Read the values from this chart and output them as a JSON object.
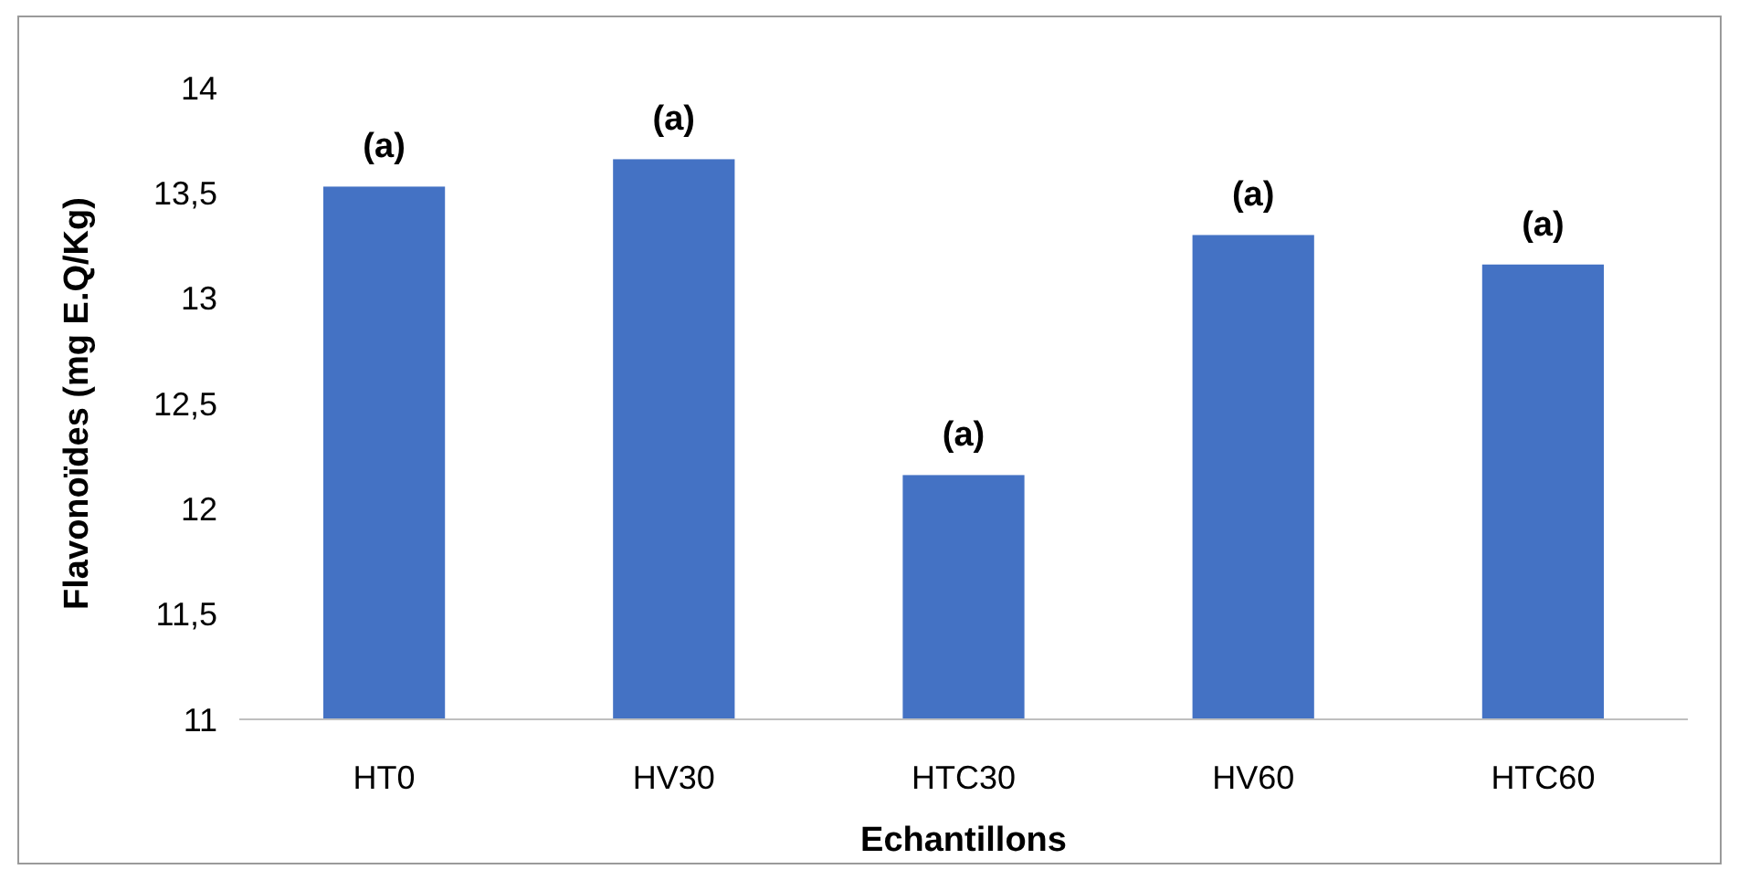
{
  "chart_data": {
    "type": "bar",
    "xlabel": "Echantillons",
    "ylabel": "Flavonoïdes (mg E.Q/Kg)",
    "categories": [
      "HT0",
      "HV30",
      "HTC30",
      "HV60",
      "HTC60"
    ],
    "values": [
      13.53,
      13.66,
      12.16,
      13.3,
      13.16
    ],
    "color": "#4472c4",
    "ylim": [
      11,
      14
    ],
    "yticks": [
      11,
      {
        "value": 11.5,
        "label": "11,5"
      },
      12,
      {
        "value": 12.5,
        "label": "12,5"
      },
      13,
      {
        "value": 13.5,
        "label": "13,5"
      },
      14
    ],
    "grid": false,
    "annotations": [
      {
        "text": "(a)",
        "x": "HT0",
        "y": 13.53
      },
      {
        "text": "(a)",
        "x": "HV30",
        "y": 13.66
      },
      {
        "text": "(a)",
        "x": "HTC30",
        "y": 12.16
      },
      {
        "text": "(a)",
        "x": "HV60",
        "y": 13.3
      },
      {
        "text": "(a)",
        "x": "HTC60",
        "y": 13.16
      }
    ]
  }
}
